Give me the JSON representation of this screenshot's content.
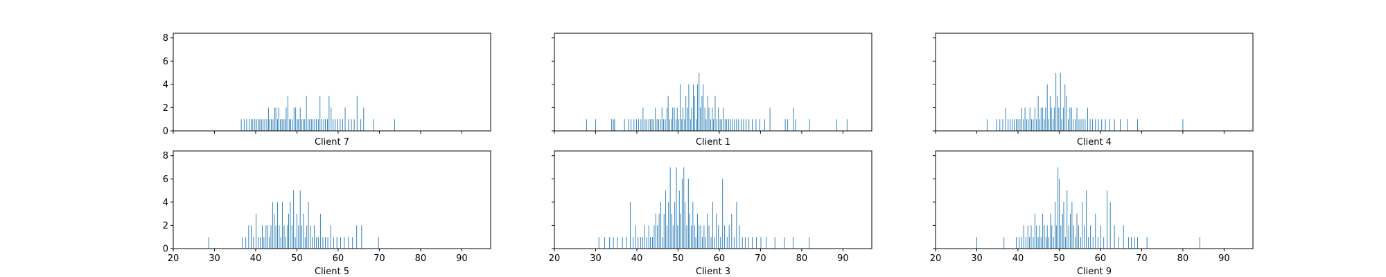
{
  "chart_data": [
    {
      "type": "bar",
      "title": "Client 7",
      "xlabel": "",
      "ylabel": "",
      "xlim": [
        20,
        97
      ],
      "ylim": [
        0,
        8.4
      ],
      "xticks": [
        20,
        30,
        40,
        50,
        60,
        70,
        80,
        90
      ],
      "yticks": [
        0,
        2,
        4,
        6,
        8
      ],
      "color": "#1f77b4",
      "grid": false,
      "x": [
        36.5,
        37.2,
        37.8,
        38.4,
        38.9,
        39.3,
        39.8,
        40.2,
        40.6,
        41.0,
        41.4,
        41.8,
        42.2,
        42.7,
        43.1,
        43.4,
        43.8,
        44.2,
        44.6,
        44.9,
        45.3,
        45.6,
        46.0,
        46.4,
        46.7,
        47.1,
        47.4,
        47.8,
        48.2,
        48.5,
        48.9,
        49.3,
        49.7,
        50.1,
        50.4,
        50.8,
        51.1,
        51.5,
        51.9,
        52.3,
        52.7,
        53.1,
        53.5,
        53.9,
        54.3,
        54.7,
        55.2,
        55.6,
        56.0,
        56.5,
        56.9,
        57.4,
        57.8,
        58.3,
        58.8,
        59.3,
        59.9,
        60.5,
        61.1,
        61.7,
        62.5,
        63.2,
        63.9,
        64.6,
        65.5,
        66.2,
        68.6,
        73.7
      ],
      "values": [
        1,
        1,
        1,
        1,
        1,
        1,
        1,
        1,
        1,
        1,
        1,
        1,
        1,
        1,
        2,
        1,
        1,
        1,
        2,
        2,
        1,
        2,
        1,
        1,
        1,
        1,
        2,
        3,
        1,
        1,
        1,
        2,
        2,
        1,
        1,
        2,
        1,
        1,
        1,
        3,
        1,
        1,
        1,
        1,
        1,
        1,
        1,
        3,
        1,
        1,
        1,
        1,
        3,
        2,
        1,
        1,
        1,
        1,
        1,
        2,
        1,
        1,
        1,
        3,
        1,
        2,
        1,
        1
      ]
    },
    {
      "type": "bar",
      "title": "Client 1",
      "xlabel": "",
      "ylabel": "",
      "xlim": [
        20,
        97
      ],
      "ylim": [
        0,
        8.4
      ],
      "xticks": [
        20,
        30,
        40,
        50,
        60,
        70,
        80,
        90
      ],
      "yticks": [
        0,
        2,
        4,
        6,
        8
      ],
      "color": "#1f77b4",
      "grid": false,
      "x": [
        27.8,
        30.0,
        33.9,
        34.3,
        34.6,
        37.0,
        38.0,
        38.6,
        39.3,
        39.9,
        40.4,
        41.0,
        41.5,
        42.0,
        42.4,
        42.9,
        43.3,
        43.7,
        44.1,
        44.5,
        44.9,
        45.3,
        45.7,
        46.1,
        46.5,
        46.9,
        47.3,
        47.6,
        48.0,
        48.4,
        48.7,
        49.1,
        49.5,
        49.8,
        50.2,
        50.5,
        50.9,
        51.2,
        51.6,
        51.9,
        52.3,
        52.6,
        53.0,
        53.3,
        53.7,
        54.0,
        54.4,
        54.7,
        55.1,
        55.4,
        55.8,
        56.1,
        56.5,
        56.8,
        57.2,
        57.5,
        57.9,
        58.3,
        58.6,
        59.0,
        59.4,
        59.8,
        60.2,
        60.6,
        61.0,
        61.4,
        61.8,
        62.3,
        62.7,
        63.2,
        63.7,
        64.2,
        64.7,
        65.3,
        65.9,
        66.5,
        67.2,
        68.0,
        68.9,
        69.8,
        71.0,
        72.3,
        76.0,
        76.6,
        78.0,
        78.5,
        81.9,
        88.5,
        91.0
      ],
      "values": [
        1,
        1,
        1,
        1,
        1,
        1,
        1,
        1,
        1,
        1,
        1,
        1,
        2,
        1,
        1,
        1,
        1,
        1,
        1,
        2,
        1,
        1,
        1,
        2,
        1,
        1,
        2,
        3,
        1,
        1,
        2,
        2,
        1,
        2,
        1,
        4,
        1,
        2,
        1,
        3,
        2,
        4,
        1,
        2,
        4,
        3,
        1,
        4,
        5,
        2,
        3,
        4,
        2,
        1,
        3,
        2,
        1,
        2,
        1,
        3,
        1,
        2,
        1,
        1,
        2,
        1,
        1,
        1,
        1,
        1,
        1,
        1,
        1,
        1,
        1,
        1,
        1,
        1,
        1,
        1,
        1,
        2,
        1,
        1,
        2,
        1,
        1,
        1,
        1
      ]
    },
    {
      "type": "bar",
      "title": "Client 4",
      "xlabel": "",
      "ylabel": "",
      "xlim": [
        20,
        97
      ],
      "ylim": [
        0,
        8.4
      ],
      "xticks": [
        20,
        30,
        40,
        50,
        60,
        70,
        80,
        90
      ],
      "yticks": [
        0,
        2,
        4,
        6,
        8
      ],
      "color": "#1f77b4",
      "grid": false,
      "x": [
        32.5,
        34.8,
        35.6,
        36.3,
        37.0,
        37.6,
        38.1,
        38.6,
        39.1,
        39.6,
        40.0,
        40.5,
        40.9,
        41.3,
        41.7,
        42.1,
        42.5,
        42.9,
        43.3,
        43.7,
        44.1,
        44.5,
        44.9,
        45.3,
        45.6,
        46.0,
        46.4,
        46.7,
        47.1,
        47.4,
        47.8,
        48.1,
        48.5,
        48.8,
        49.2,
        49.5,
        49.9,
        50.3,
        50.6,
        51.0,
        51.4,
        51.8,
        52.2,
        52.6,
        53.0,
        53.4,
        53.9,
        54.3,
        54.8,
        55.3,
        55.8,
        56.3,
        56.9,
        57.5,
        58.1,
        58.8,
        59.5,
        60.3,
        61.2,
        62.2,
        63.4,
        64.8,
        66.5,
        69.0,
        80.0
      ],
      "values": [
        1,
        1,
        1,
        1,
        2,
        1,
        1,
        1,
        1,
        1,
        1,
        1,
        2,
        1,
        2,
        1,
        1,
        2,
        1,
        1,
        2,
        1,
        3,
        1,
        2,
        2,
        1,
        2,
        4,
        1,
        3,
        2,
        1,
        2,
        5,
        3,
        2,
        5,
        1,
        2,
        4,
        3,
        1,
        2,
        2,
        1,
        1,
        2,
        1,
        1,
        1,
        1,
        2,
        1,
        1,
        1,
        1,
        1,
        1,
        1,
        1,
        1,
        1,
        1,
        1
      ]
    },
    {
      "type": "bar",
      "title": "Client 5",
      "xlabel": "",
      "ylabel": "",
      "xlim": [
        20,
        97
      ],
      "ylim": [
        0,
        8.4
      ],
      "xticks": [
        20,
        30,
        40,
        50,
        60,
        70,
        80,
        90
      ],
      "yticks": [
        0,
        2,
        4,
        6,
        8
      ],
      "color": "#1f77b4",
      "grid": false,
      "x": [
        28.6,
        36.8,
        37.6,
        38.3,
        38.9,
        39.5,
        40.1,
        40.6,
        41.1,
        41.6,
        42.0,
        42.5,
        42.9,
        43.3,
        43.7,
        44.1,
        44.5,
        44.9,
        45.3,
        45.7,
        46.1,
        46.5,
        46.9,
        47.3,
        47.7,
        48.0,
        48.4,
        48.8,
        49.2,
        49.6,
        50.0,
        50.4,
        50.8,
        51.2,
        51.6,
        52.0,
        52.4,
        52.8,
        53.3,
        53.7,
        54.2,
        54.7,
        55.2,
        55.7,
        56.3,
        56.9,
        57.5,
        58.2,
        58.9,
        59.7,
        60.6,
        61.5,
        62.5,
        63.5,
        64.5,
        65.7,
        69.8
      ],
      "values": [
        1,
        1,
        1,
        2,
        2,
        1,
        3,
        1,
        1,
        2,
        1,
        2,
        2,
        1,
        2,
        4,
        3,
        2,
        4,
        2,
        1,
        4,
        2,
        1,
        2,
        3,
        4,
        2,
        5,
        1,
        3,
        2,
        5,
        2,
        3,
        1,
        2,
        4,
        2,
        1,
        2,
        1,
        1,
        3,
        1,
        1,
        1,
        2,
        1,
        1,
        1,
        1,
        1,
        1,
        2,
        2,
        1
      ]
    },
    {
      "type": "bar",
      "title": "Client 3",
      "xlabel": "",
      "ylabel": "",
      "xlim": [
        20,
        97
      ],
      "ylim": [
        0,
        8.4
      ],
      "xticks": [
        20,
        30,
        40,
        50,
        60,
        70,
        80,
        90
      ],
      "yticks": [
        0,
        2,
        4,
        6,
        8
      ],
      "color": "#1f77b4",
      "grid": false,
      "x": [
        30.8,
        32.2,
        33.4,
        34.3,
        35.3,
        36.5,
        37.5,
        38.4,
        39.1,
        39.7,
        40.3,
        40.9,
        41.4,
        41.9,
        42.4,
        42.9,
        43.3,
        43.8,
        44.2,
        44.6,
        45.0,
        45.4,
        45.8,
        46.2,
        46.6,
        47.0,
        47.3,
        47.7,
        48.1,
        48.5,
        48.8,
        49.2,
        49.6,
        49.9,
        50.3,
        50.6,
        51.0,
        51.4,
        51.7,
        52.1,
        52.5,
        52.8,
        53.2,
        53.6,
        54.0,
        54.3,
        54.7,
        55.1,
        55.5,
        55.9,
        56.3,
        56.7,
        57.1,
        57.5,
        58.0,
        58.4,
        58.9,
        59.3,
        59.8,
        60.3,
        60.8,
        61.3,
        61.9,
        62.4,
        63.0,
        63.6,
        64.2,
        64.9,
        65.6,
        66.3,
        67.1,
        68.0,
        69.0,
        70.1,
        71.4,
        73.5,
        75.8,
        77.9,
        81.8
      ],
      "values": [
        1,
        1,
        1,
        1,
        1,
        1,
        1,
        4,
        1,
        2,
        1,
        1,
        1,
        2,
        1,
        2,
        1,
        1,
        2,
        3,
        2,
        3,
        4,
        1,
        3,
        5,
        2,
        4,
        7,
        3,
        2,
        4,
        7,
        2,
        5,
        3,
        6,
        7,
        4,
        2,
        6,
        3,
        2,
        4,
        2,
        1,
        3,
        2,
        2,
        1,
        2,
        1,
        3,
        2,
        1,
        4,
        1,
        3,
        2,
        1,
        6,
        2,
        1,
        2,
        3,
        1,
        4,
        2,
        1,
        1,
        1,
        1,
        1,
        1,
        1,
        1,
        1,
        1,
        1
      ]
    },
    {
      "type": "bar",
      "title": "Client 9",
      "xlabel": "",
      "ylabel": "",
      "xlim": [
        20,
        97
      ],
      "ylim": [
        0,
        8.4
      ],
      "xticks": [
        20,
        30,
        40,
        50,
        60,
        70,
        80,
        90
      ],
      "yticks": [
        0,
        2,
        4,
        6,
        8
      ],
      "color": "#1f77b4",
      "grid": false,
      "x": [
        30.0,
        36.6,
        39.6,
        40.3,
        40.9,
        41.4,
        41.9,
        42.4,
        42.8,
        43.2,
        43.7,
        44.1,
        44.5,
        44.9,
        45.3,
        45.6,
        46.0,
        46.4,
        46.8,
        47.1,
        47.5,
        47.9,
        48.2,
        48.6,
        49.0,
        49.3,
        49.7,
        50.0,
        50.4,
        50.8,
        51.1,
        51.5,
        51.9,
        52.3,
        52.7,
        53.1,
        53.5,
        53.9,
        54.3,
        54.7,
        55.2,
        55.6,
        56.1,
        56.6,
        57.1,
        57.6,
        58.2,
        58.8,
        59.4,
        60.1,
        60.8,
        61.6,
        62.4,
        63.4,
        64.4,
        65.6,
        66.8,
        67.5,
        68.3,
        69.0,
        71.3,
        84.1
      ],
      "values": [
        1,
        1,
        1,
        1,
        1,
        2,
        1,
        2,
        1,
        2,
        1,
        3,
        2,
        1,
        2,
        1,
        3,
        2,
        1,
        2,
        1,
        3,
        2,
        1,
        4,
        2,
        7,
        6,
        2,
        3,
        4,
        1,
        5,
        2,
        3,
        4,
        2,
        1,
        3,
        2,
        1,
        4,
        2,
        5,
        1,
        2,
        1,
        3,
        1,
        2,
        1,
        5,
        4,
        2,
        1,
        2,
        1,
        1,
        1,
        1,
        1,
        1
      ]
    }
  ]
}
